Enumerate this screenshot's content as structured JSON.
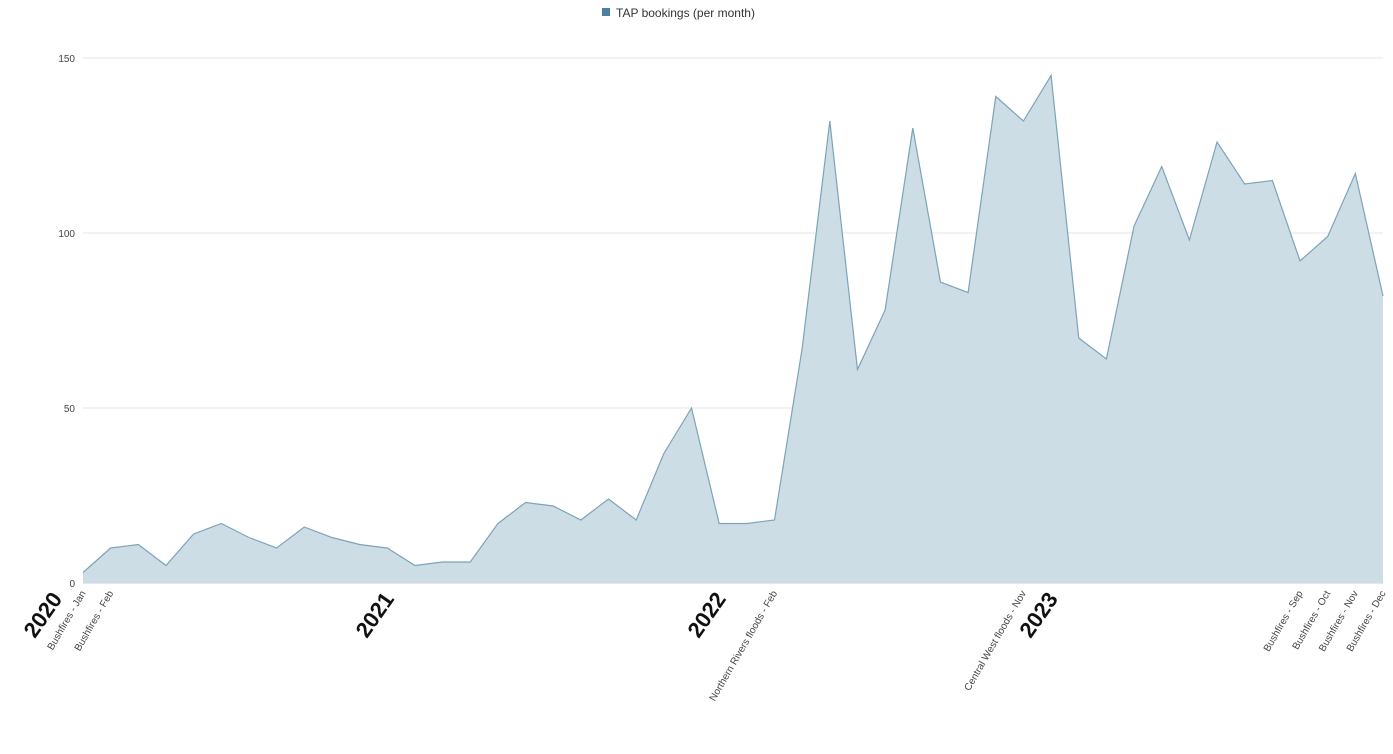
{
  "chart_data": {
    "type": "area",
    "legend": {
      "label": "TAP bookings (per month)",
      "position": "top-center",
      "color": "#4f7f9f"
    },
    "colors": {
      "fill": "#ccdde6",
      "line": "#7da3b8",
      "grid": "#e6e6e6"
    },
    "ylim": [
      0,
      150
    ],
    "yticks": [
      0,
      50,
      100,
      150
    ],
    "grid": true,
    "xlim": [
      "2020-01",
      "2023-12"
    ],
    "x": [
      "2020-01",
      "2020-02",
      "2020-03",
      "2020-04",
      "2020-05",
      "2020-06",
      "2020-07",
      "2020-08",
      "2020-09",
      "2020-10",
      "2020-11",
      "2020-12",
      "2021-01",
      "2021-02",
      "2021-03",
      "2021-04",
      "2021-05",
      "2021-06",
      "2021-07",
      "2021-08",
      "2021-09",
      "2021-10",
      "2021-11",
      "2021-12",
      "2022-01",
      "2022-02",
      "2022-03",
      "2022-04",
      "2022-05",
      "2022-06",
      "2022-07",
      "2022-08",
      "2022-09",
      "2022-10",
      "2022-11",
      "2022-12",
      "2023-01",
      "2023-02",
      "2023-03",
      "2023-04",
      "2023-05",
      "2023-06",
      "2023-07",
      "2023-08",
      "2023-09",
      "2023-10",
      "2023-11",
      "2023-12"
    ],
    "series": [
      {
        "name": "TAP bookings (per month)",
        "values": [
          3,
          10,
          11,
          5,
          14,
          17,
          13,
          10,
          16,
          13,
          11,
          10,
          5,
          6,
          6,
          17,
          23,
          22,
          18,
          24,
          18,
          37,
          50,
          17,
          17,
          18,
          67,
          132,
          61,
          78,
          130,
          86,
          83,
          139,
          132,
          145,
          70,
          64,
          102,
          119,
          98,
          126,
          114,
          115,
          92,
          99,
          117,
          82
        ]
      }
    ],
    "year_labels": [
      {
        "label": "2020",
        "x": "2020-01"
      },
      {
        "label": "2021",
        "x": "2021-01"
      },
      {
        "label": "2022",
        "x": "2022-01"
      },
      {
        "label": "2023",
        "x": "2023-01"
      }
    ],
    "event_labels": [
      {
        "label": "Bushfires - Jan",
        "x": "2020-01"
      },
      {
        "label": "Bushfires - Feb",
        "x": "2020-02"
      },
      {
        "label": "Northern Rivers floods - Feb",
        "x": "2022-02"
      },
      {
        "label": "Central West floods - Nov",
        "x": "2022-11"
      },
      {
        "label": "Bushfires - Sep",
        "x": "2023-09"
      },
      {
        "label": "Bushfires - Oct",
        "x": "2023-10"
      },
      {
        "label": "Bushfires - Nov",
        "x": "2023-11"
      },
      {
        "label": "Bushfires - Dec",
        "x": "2023-12"
      }
    ]
  }
}
